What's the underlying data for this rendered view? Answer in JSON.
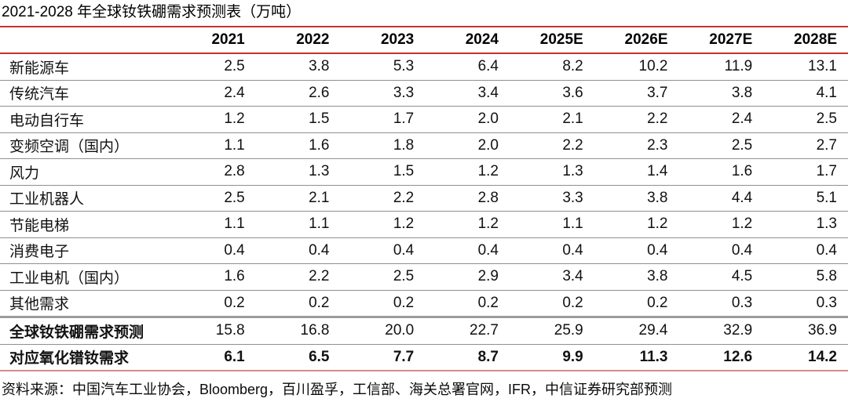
{
  "page": {
    "title": "2021-2028 年全球钕铁硼需求预测表（万吨）",
    "source_note": "资料来源：中国汽车工业协会，Bloomberg，百川盈孚，工信部、海关总署官网，IFR，中信证券研究部预测"
  },
  "colors": {
    "accent_red_line": "#C43131",
    "bottom_red_line": "#D98A8A",
    "row_separator_gray": "#8F8F8F",
    "text": "#111111"
  },
  "chart_data": {
    "type": "table",
    "title": "2021-2028 年全球钕铁硼需求预测表（万吨）",
    "unit": "万吨",
    "columns": [
      "",
      "2021",
      "2022",
      "2023",
      "2024",
      "2025E",
      "2026E",
      "2027E",
      "2028E"
    ],
    "rows": [
      {
        "label": "新能源车",
        "values": [
          "2.5",
          "3.8",
          "5.3",
          "6.4",
          "8.2",
          "10.2",
          "11.9",
          "13.1"
        ],
        "label_bold": false,
        "values_bold": false,
        "thick_top": false
      },
      {
        "label": "传统汽车",
        "values": [
          "2.4",
          "2.6",
          "3.3",
          "3.4",
          "3.6",
          "3.7",
          "3.8",
          "4.1"
        ],
        "label_bold": false,
        "values_bold": false,
        "thick_top": false
      },
      {
        "label": "电动自行车",
        "values": [
          "1.2",
          "1.5",
          "1.7",
          "2.0",
          "2.1",
          "2.2",
          "2.4",
          "2.5"
        ],
        "label_bold": false,
        "values_bold": false,
        "thick_top": false
      },
      {
        "label": "变频空调（国内）",
        "values": [
          "1.1",
          "1.6",
          "1.8",
          "2.0",
          "2.2",
          "2.3",
          "2.5",
          "2.7"
        ],
        "label_bold": false,
        "values_bold": false,
        "thick_top": false
      },
      {
        "label": "风力",
        "values": [
          "2.8",
          "1.3",
          "1.5",
          "1.2",
          "1.3",
          "1.4",
          "1.6",
          "1.7"
        ],
        "label_bold": false,
        "values_bold": false,
        "thick_top": false
      },
      {
        "label": "工业机器人",
        "values": [
          "2.5",
          "2.1",
          "2.2",
          "2.8",
          "3.3",
          "3.8",
          "4.4",
          "5.1"
        ],
        "label_bold": false,
        "values_bold": false,
        "thick_top": false
      },
      {
        "label": "节能电梯",
        "values": [
          "1.1",
          "1.1",
          "1.2",
          "1.2",
          "1.1",
          "1.2",
          "1.2",
          "1.3"
        ],
        "label_bold": false,
        "values_bold": false,
        "thick_top": false
      },
      {
        "label": "消费电子",
        "values": [
          "0.4",
          "0.4",
          "0.4",
          "0.4",
          "0.4",
          "0.4",
          "0.4",
          "0.4"
        ],
        "label_bold": false,
        "values_bold": false,
        "thick_top": false
      },
      {
        "label": "工业电机（国内）",
        "values": [
          "1.6",
          "2.2",
          "2.5",
          "2.9",
          "3.4",
          "3.8",
          "4.5",
          "5.8"
        ],
        "label_bold": false,
        "values_bold": false,
        "thick_top": false
      },
      {
        "label": "其他需求",
        "values": [
          "0.2",
          "0.2",
          "0.2",
          "0.2",
          "0.2",
          "0.2",
          "0.3",
          "0.3"
        ],
        "label_bold": false,
        "values_bold": false,
        "thick_top": false
      },
      {
        "label": "全球钕铁硼需求预测",
        "values": [
          "15.8",
          "16.8",
          "20.0",
          "22.7",
          "25.9",
          "29.4",
          "32.9",
          "36.9"
        ],
        "label_bold": true,
        "values_bold": false,
        "thick_top": true
      },
      {
        "label": "对应氧化镨钕需求",
        "values": [
          "6.1",
          "6.5",
          "7.7",
          "8.7",
          "9.9",
          "11.3",
          "12.6",
          "14.2"
        ],
        "label_bold": true,
        "values_bold": true,
        "thick_top": false
      }
    ]
  }
}
